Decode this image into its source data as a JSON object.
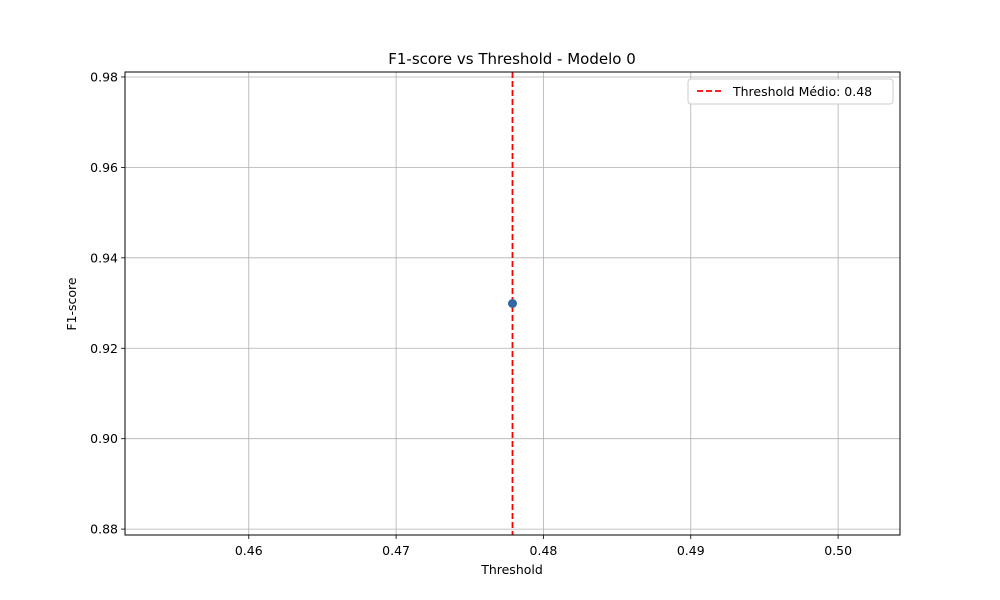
{
  "chart_data": {
    "type": "scatter",
    "title": "F1-score vs Threshold - Modelo 0",
    "xlabel": "Threshold",
    "ylabel": "F1-score",
    "xlim": [
      0.4516,
      0.5042
    ],
    "ylim": [
      0.8787,
      0.9811
    ],
    "xticks": [
      0.46,
      0.47,
      0.48,
      0.49,
      0.5
    ],
    "xtick_labels": [
      "0.46",
      "0.47",
      "0.48",
      "0.49",
      "0.50"
    ],
    "yticks": [
      0.88,
      0.9,
      0.92,
      0.94,
      0.96,
      0.98
    ],
    "ytick_labels": [
      "0.88",
      "0.90",
      "0.92",
      "0.94",
      "0.96",
      "0.98"
    ],
    "grid": true,
    "series": [
      {
        "x": [
          0.4779
        ],
        "y": [
          0.9299
        ],
        "color": "#3465a4"
      }
    ],
    "reference_lines": [
      {
        "orientation": "vertical",
        "x": 0.4779,
        "style": "dashed",
        "color": "#ff0000",
        "label": "Threshold Médio: 0.48"
      }
    ],
    "legend": {
      "position": "top-right",
      "entries": [
        "Threshold Médio: 0.48"
      ]
    }
  }
}
